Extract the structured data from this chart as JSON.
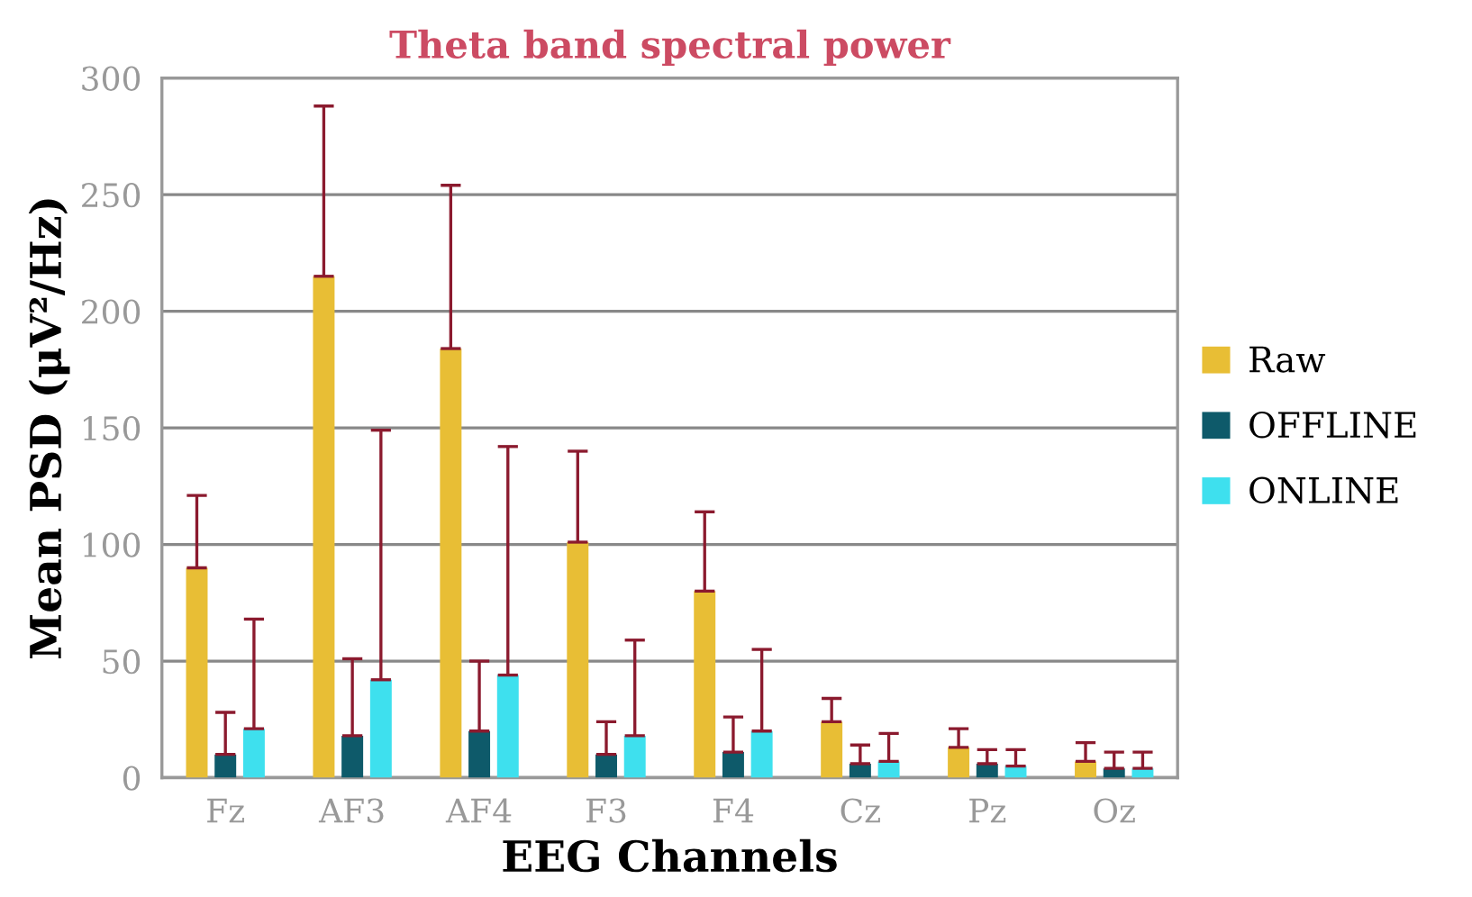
{
  "chart_data": {
    "type": "bar",
    "title": "Theta band spectral power",
    "xlabel": "EEG Channels",
    "ylabel": "Mean PSD (μV²/Hz)",
    "categories": [
      "Fz",
      "AF3",
      "AF4",
      "F3",
      "F4",
      "Cz",
      "Pz",
      "Oz"
    ],
    "series": [
      {
        "name": "Raw",
        "color": "#e8be35",
        "values": [
          90,
          215,
          184,
          101,
          80,
          24,
          13,
          7
        ],
        "errors": [
          [
            90,
            121
          ],
          [
            215,
            288
          ],
          [
            184,
            254
          ],
          [
            101,
            140
          ],
          [
            80,
            114
          ],
          [
            24,
            34
          ],
          [
            13,
            21
          ],
          [
            7,
            15
          ]
        ]
      },
      {
        "name": "OFFLINE",
        "color": "#0e5a6a",
        "values": [
          10,
          18,
          20,
          10,
          11,
          6,
          6,
          4
        ],
        "errors": [
          [
            10,
            28
          ],
          [
            18,
            51
          ],
          [
            20,
            50
          ],
          [
            10,
            24
          ],
          [
            11,
            26
          ],
          [
            6,
            14
          ],
          [
            6,
            12
          ],
          [
            4,
            11
          ]
        ]
      },
      {
        "name": "ONLINE",
        "color": "#3ee0ee",
        "values": [
          21,
          42,
          44,
          18,
          20,
          7,
          5,
          4
        ],
        "errors": [
          [
            21,
            68
          ],
          [
            42,
            149
          ],
          [
            44,
            142
          ],
          [
            18,
            59
          ],
          [
            20,
            55
          ],
          [
            7,
            19
          ],
          [
            5,
            12
          ],
          [
            4,
            11
          ]
        ]
      }
    ],
    "ylim": [
      0,
      300
    ],
    "yticks": [
      0,
      50,
      100,
      150,
      200,
      250,
      300
    ],
    "grid": "y",
    "legend": "right"
  }
}
